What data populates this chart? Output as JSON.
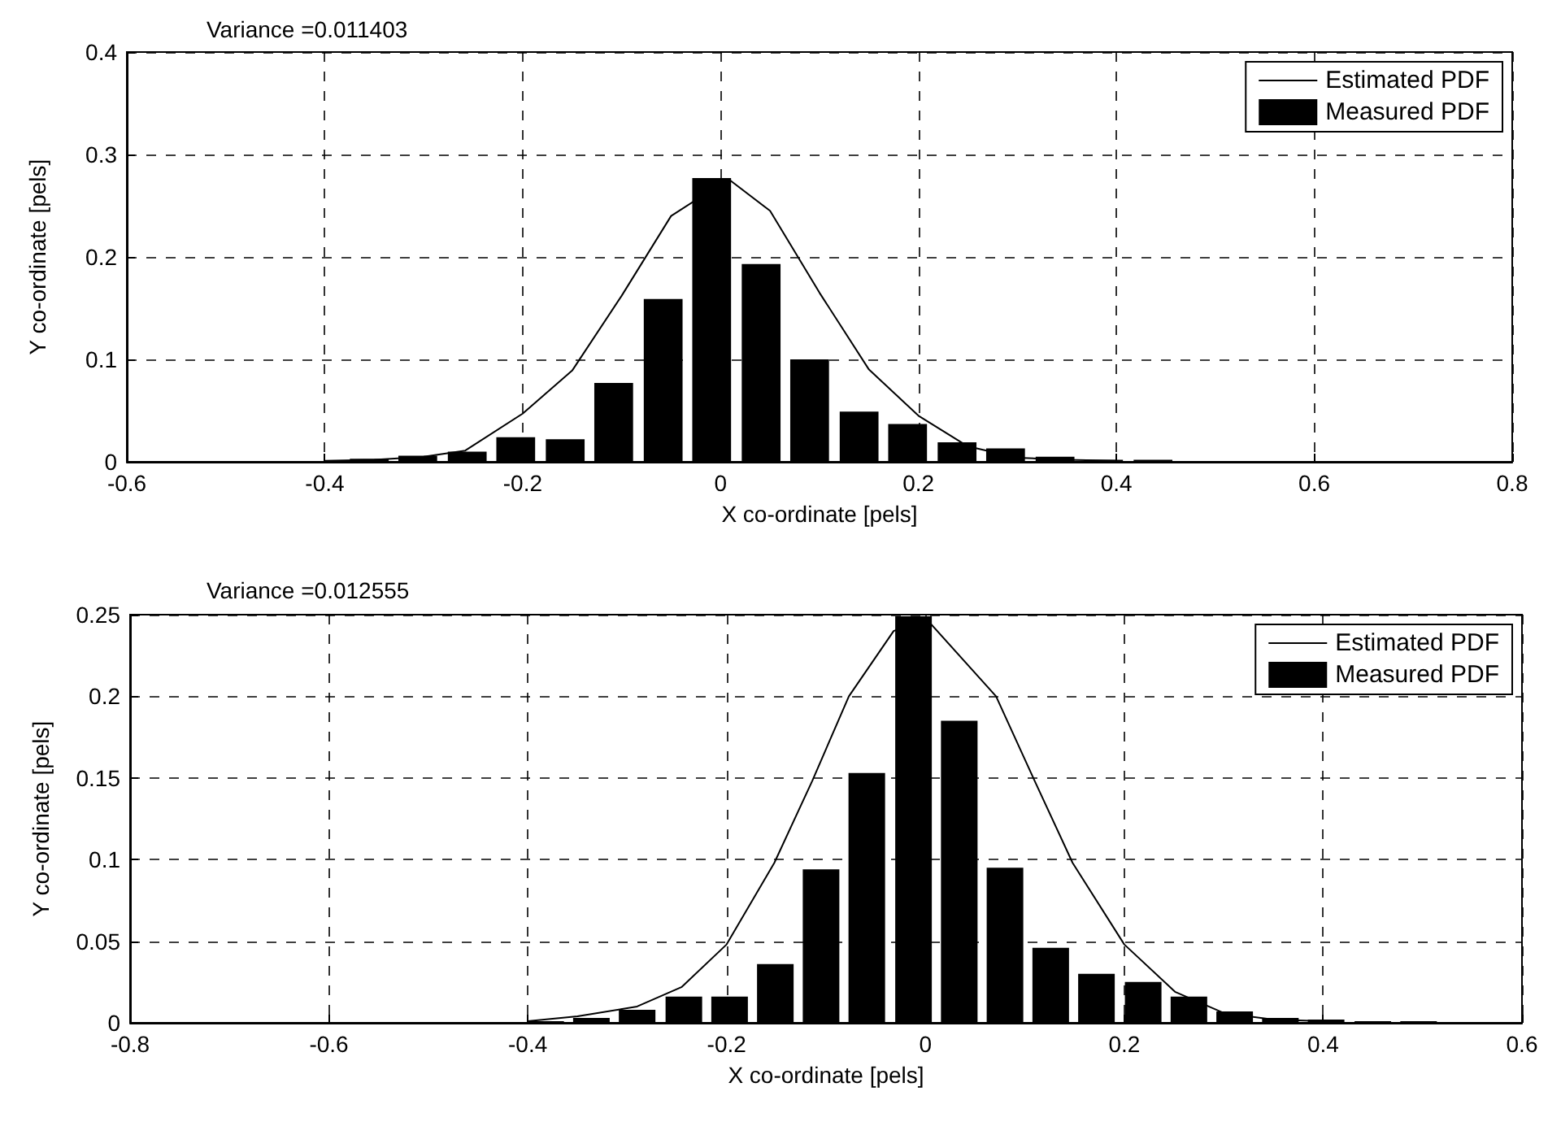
{
  "chart_data": [
    {
      "type": "bar",
      "title": "Variance =0.011403",
      "xlabel": "X co-ordinate [pels]",
      "ylabel": "Y co-ordinate [pels]",
      "xlim": [
        -0.6,
        0.8
      ],
      "xticks": [
        -0.6,
        -0.4,
        -0.2,
        0,
        0.2,
        0.4,
        0.6,
        0.8
      ],
      "ylim": [
        0,
        0.4
      ],
      "yticks": [
        0,
        0.1,
        0.2,
        0.3,
        0.4
      ],
      "grid": true,
      "legend": "top right",
      "marker": "none",
      "line_style": "solid",
      "series": [
        {
          "name": "Estimated PDF",
          "type": "line",
          "color": "#000000",
          "x": [
            -0.4,
            -0.35,
            -0.3,
            -0.258,
            -0.2,
            -0.15,
            -0.1,
            -0.05,
            0.008,
            0.05,
            0.1,
            0.15,
            0.2,
            0.25,
            0.3,
            0.35,
            0.4
          ],
          "values": [
            0.001,
            0.002,
            0.005,
            0.011,
            0.047,
            0.089,
            0.162,
            0.24,
            0.276,
            0.245,
            0.165,
            0.09,
            0.045,
            0.015,
            0.004,
            0.002,
            0.001
          ]
        },
        {
          "name": "Measured PDF",
          "color": "#000000",
          "x": [
            -0.355,
            -0.306,
            -0.256,
            -0.207,
            -0.157,
            -0.108,
            -0.058,
            -0.009,
            0.041,
            0.09,
            0.14,
            0.189,
            0.239,
            0.288,
            0.338,
            0.387,
            0.437
          ],
          "values": [
            0.003,
            0.006,
            0.01,
            0.024,
            0.022,
            0.077,
            0.159,
            0.277,
            0.193,
            0.1,
            0.049,
            0.037,
            0.019,
            0.013,
            0.005,
            0.002,
            0.002
          ]
        }
      ]
    },
    {
      "type": "bar",
      "title": "Variance =0.012555",
      "xlabel": "X co-ordinate [pels]",
      "ylabel": "Y co-ordinate [pels]",
      "xlim": [
        -0.8,
        0.6
      ],
      "xticks": [
        -0.8,
        -0.6,
        -0.4,
        -0.2,
        0,
        0.2,
        0.4,
        0.6
      ],
      "ylim": [
        0,
        0.25
      ],
      "yticks": [
        0,
        0.05,
        0.1,
        0.15,
        0.2,
        0.25
      ],
      "grid": true,
      "legend": "top right",
      "marker": "none",
      "line_style": "solid",
      "series": [
        {
          "name": "Estimated PDF",
          "type": "line",
          "color": "#000000",
          "x": [
            -0.4,
            -0.35,
            -0.29,
            -0.245,
            -0.2,
            -0.152,
            -0.114,
            -0.077,
            -0.032,
            0,
            0.071,
            0.11,
            0.148,
            0.2,
            0.251,
            0.3,
            0.35,
            0.4
          ],
          "values": [
            0.001,
            0.004,
            0.01,
            0.022,
            0.048,
            0.098,
            0.148,
            0.2,
            0.24,
            0.248,
            0.2,
            0.148,
            0.098,
            0.048,
            0.019,
            0.006,
            0.002,
            0.001
          ]
        },
        {
          "name": "Measured PDF",
          "color": "#000000",
          "x": [
            -0.382,
            -0.336,
            -0.29,
            -0.243,
            -0.197,
            -0.151,
            -0.105,
            -0.059,
            -0.012,
            0.034,
            0.08,
            0.126,
            0.172,
            0.219,
            0.265,
            0.311,
            0.357,
            0.403,
            0.45,
            0.496
          ],
          "values": [
            0.001,
            0.003,
            0.008,
            0.016,
            0.016,
            0.036,
            0.094,
            0.153,
            0.249,
            0.185,
            0.095,
            0.046,
            0.03,
            0.025,
            0.016,
            0.007,
            0.003,
            0.002,
            0.001,
            0.001
          ]
        }
      ]
    }
  ]
}
